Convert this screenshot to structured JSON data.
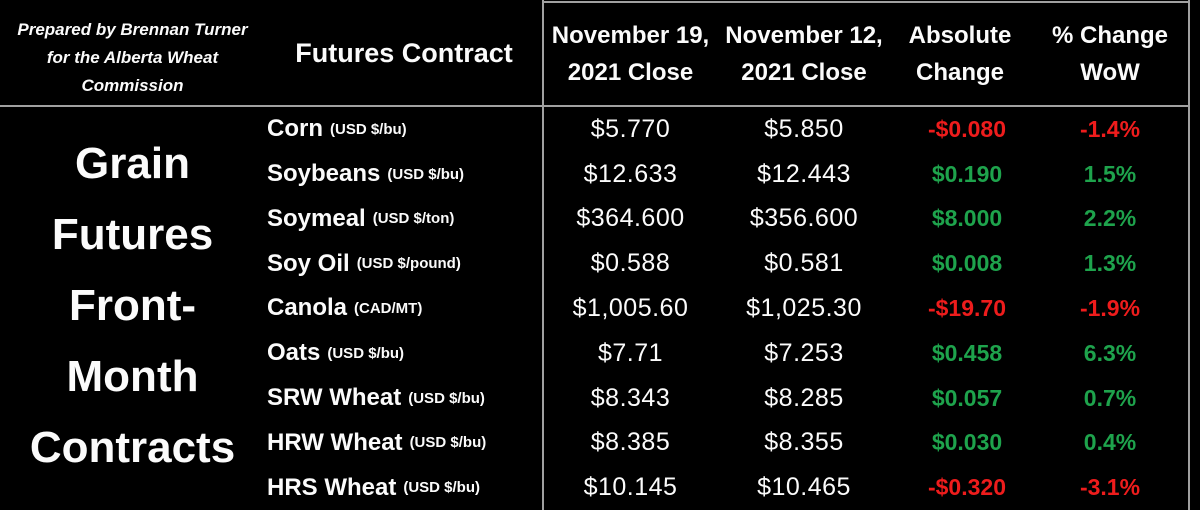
{
  "colors": {
    "background": "#000000",
    "text": "#fbfbfb",
    "positive": "#1ea34c",
    "negative": "#ee1c1c",
    "grid_line": "#a0a0a0"
  },
  "attribution": {
    "lines": [
      "Prepared by Brennan Turner",
      "for the Alberta Wheat",
      "Commission"
    ]
  },
  "side_label": {
    "lines": [
      "Grain",
      "Futures",
      "Front-",
      "Month",
      "Contracts"
    ]
  },
  "header": {
    "contract_column": "Futures Contract",
    "value_columns": [
      {
        "line1": "November 19,",
        "line2": "2021 Close"
      },
      {
        "line1": "November 12,",
        "line2": "2021 Close"
      },
      {
        "line1": "Absolute",
        "line2": "Change"
      },
      {
        "line1": "% Change",
        "line2": "WoW"
      }
    ]
  },
  "rows": [
    {
      "name": "Corn",
      "unit": "(USD $/bu)",
      "close_nov19": "$5.770",
      "close_nov12": "$5.850",
      "abs_change": "-$0.080",
      "pct_change": "-1.4%",
      "direction": "down"
    },
    {
      "name": "Soybeans",
      "unit": "(USD $/bu)",
      "close_nov19": "$12.633",
      "close_nov12": "$12.443",
      "abs_change": "$0.190",
      "pct_change": "1.5%",
      "direction": "up"
    },
    {
      "name": "Soymeal",
      "unit": "(USD $/ton)",
      "close_nov19": "$364.600",
      "close_nov12": "$356.600",
      "abs_change": "$8.000",
      "pct_change": "2.2%",
      "direction": "up"
    },
    {
      "name": "Soy Oil",
      "unit": "(USD $/pound)",
      "close_nov19": "$0.588",
      "close_nov12": "$0.581",
      "abs_change": "$0.008",
      "pct_change": "1.3%",
      "direction": "up"
    },
    {
      "name": "Canola",
      "unit": "(CAD/MT)",
      "close_nov19": "$1,005.60",
      "close_nov12": "$1,025.30",
      "abs_change": "-$19.70",
      "pct_change": "-1.9%",
      "direction": "down"
    },
    {
      "name": "Oats",
      "unit": "(USD $/bu)",
      "close_nov19": "$7.71",
      "close_nov12": "$7.253",
      "abs_change": "$0.458",
      "pct_change": "6.3%",
      "direction": "up"
    },
    {
      "name": "SRW Wheat",
      "unit": "(USD $/bu)",
      "close_nov19": "$8.343",
      "close_nov12": "$8.285",
      "abs_change": "$0.057",
      "pct_change": "0.7%",
      "direction": "up"
    },
    {
      "name": "HRW Wheat",
      "unit": "(USD $/bu)",
      "close_nov19": "$8.385",
      "close_nov12": "$8.355",
      "abs_change": "$0.030",
      "pct_change": "0.4%",
      "direction": "up"
    },
    {
      "name": "HRS Wheat",
      "unit": "(USD $/bu)",
      "close_nov19": "$10.145",
      "close_nov12": "$10.465",
      "abs_change": "-$0.320",
      "pct_change": "-3.1%",
      "direction": "down"
    }
  ],
  "chart_data": {
    "type": "table",
    "title": "Grain Futures Front-Month Contracts",
    "subtitle": "Prepared by Brennan Turner for the Alberta Wheat Commission",
    "columns": [
      "Futures Contract",
      "November 19, 2021 Close",
      "November 12, 2021 Close",
      "Absolute Change",
      "% Change WoW"
    ],
    "rows": [
      [
        "Corn (USD $/bu)",
        5.77,
        5.85,
        -0.08,
        -1.4
      ],
      [
        "Soybeans (USD $/bu)",
        12.633,
        12.443,
        0.19,
        1.5
      ],
      [
        "Soymeal (USD $/ton)",
        364.6,
        356.6,
        8.0,
        2.2
      ],
      [
        "Soy Oil (USD $/pound)",
        0.588,
        0.581,
        0.008,
        1.3
      ],
      [
        "Canola (CAD/MT)",
        1005.6,
        1025.3,
        -19.7,
        -1.9
      ],
      [
        "Oats (USD $/bu)",
        7.71,
        7.253,
        0.458,
        6.3
      ],
      [
        "SRW Wheat (USD $/bu)",
        8.343,
        8.285,
        0.057,
        0.7
      ],
      [
        "HRW Wheat (USD $/bu)",
        8.385,
        8.355,
        0.03,
        0.4
      ],
      [
        "HRS Wheat (USD $/bu)",
        10.145,
        10.465,
        -0.32,
        -3.1
      ]
    ],
    "layout": {
      "positive_color": "#1ea34c",
      "negative_color": "#ee1c1c",
      "background": "#000000"
    }
  }
}
